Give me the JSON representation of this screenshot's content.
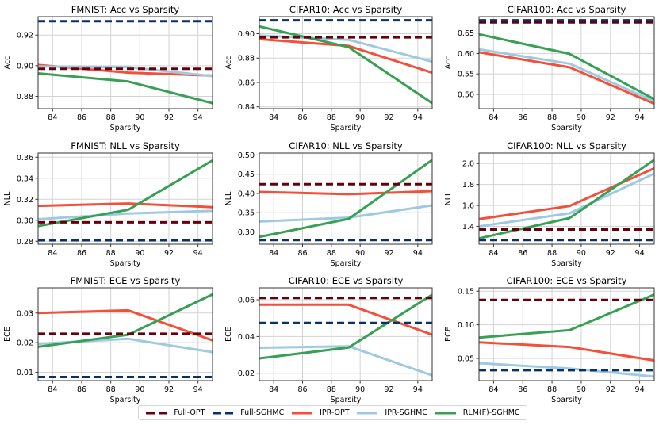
{
  "figure": {
    "legend": {
      "placement": "bottom-center",
      "entries": [
        {
          "label": "Full-OPT",
          "color": "#67000d",
          "style": "dashed"
        },
        {
          "label": "Full-SGHMC",
          "color": "#08306b",
          "style": "dashed"
        },
        {
          "label": "IPR-OPT",
          "color": "#f44f39",
          "style": "solid"
        },
        {
          "label": "IPR-SGHMC",
          "color": "#9ecae1",
          "style": "solid"
        },
        {
          "label": "RLM(F)-SGHMC",
          "color": "#37a055",
          "style": "solid"
        }
      ]
    }
  },
  "chart_data": [
    {
      "type": "line",
      "title": "FMNIST: Acc vs Sparsity",
      "xlabel": "Sparsity",
      "ylabel": "Acc",
      "xlim": [
        83,
        95
      ],
      "ylim": [
        0.872,
        0.932
      ],
      "grid": true,
      "xticks": [
        84,
        86,
        88,
        90,
        92,
        94
      ],
      "yticks": [
        0.88,
        0.9,
        0.92
      ],
      "ytick_labels": [
        "0.88",
        "0.90",
        "0.92"
      ],
      "x": [
        83,
        89.2,
        95
      ],
      "series": [
        {
          "name": "Full-OPT",
          "values": [
            0.898,
            0.898,
            0.898
          ]
        },
        {
          "name": "Full-SGHMC",
          "values": [
            0.929,
            0.929,
            0.929
          ]
        },
        {
          "name": "IPR-OPT",
          "values": [
            0.9005,
            0.8955,
            0.8935
          ]
        },
        {
          "name": "IPR-SGHMC",
          "values": [
            0.8995,
            0.899,
            0.8932
          ]
        },
        {
          "name": "RLM(F)-SGHMC",
          "values": [
            0.895,
            0.8897,
            0.8755
          ]
        }
      ]
    },
    {
      "type": "line",
      "title": "CIFAR10: Acc vs Sparsity",
      "xlabel": "Sparsity",
      "ylabel": "Acc",
      "xlim": [
        83,
        95
      ],
      "ylim": [
        0.8385,
        0.914
      ],
      "grid": true,
      "xticks": [
        84,
        86,
        88,
        90,
        92,
        94
      ],
      "yticks": [
        0.84,
        0.86,
        0.88,
        0.9
      ],
      "ytick_labels": [
        "0.84",
        "0.86",
        "0.88",
        "0.90"
      ],
      "x": [
        83,
        89.2,
        95
      ],
      "series": [
        {
          "name": "Full-OPT",
          "values": [
            0.897,
            0.897,
            0.897
          ]
        },
        {
          "name": "Full-SGHMC",
          "values": [
            0.911,
            0.911,
            0.911
          ]
        },
        {
          "name": "IPR-OPT",
          "values": [
            0.8955,
            0.89,
            0.868
          ]
        },
        {
          "name": "IPR-SGHMC",
          "values": [
            0.8985,
            0.895,
            0.877
          ]
        },
        {
          "name": "RLM(F)-SGHMC",
          "values": [
            0.906,
            0.889,
            0.843
          ]
        }
      ]
    },
    {
      "type": "line",
      "title": "CIFAR100: Acc vs Sparsity",
      "xlabel": "Sparsity",
      "ylabel": "Acc",
      "xlim": [
        83,
        95
      ],
      "ylim": [
        0.465,
        0.69
      ],
      "grid": true,
      "xticks": [
        84,
        86,
        88,
        90,
        92,
        94
      ],
      "yticks": [
        0.5,
        0.55,
        0.6,
        0.65
      ],
      "ytick_labels": [
        "0.50",
        "0.55",
        "0.60",
        "0.65"
      ],
      "x": [
        83,
        89.2,
        95
      ],
      "series": [
        {
          "name": "Full-OPT",
          "values": [
            0.676,
            0.676,
            0.676
          ]
        },
        {
          "name": "Full-SGHMC",
          "values": [
            0.681,
            0.681,
            0.681
          ]
        },
        {
          "name": "IPR-OPT",
          "values": [
            0.603,
            0.566,
            0.477
          ]
        },
        {
          "name": "IPR-SGHMC",
          "values": [
            0.61,
            0.575,
            0.483
          ]
        },
        {
          "name": "RLM(F)-SGHMC",
          "values": [
            0.647,
            0.599,
            0.488
          ]
        }
      ]
    },
    {
      "type": "line",
      "title": "FMNIST: NLL vs Sparsity",
      "xlabel": "Sparsity",
      "ylabel": "NLL",
      "xlim": [
        83,
        95
      ],
      "ylim": [
        0.2772,
        0.364
      ],
      "grid": true,
      "xticks": [
        84,
        86,
        88,
        90,
        92,
        94
      ],
      "yticks": [
        0.28,
        0.3,
        0.32,
        0.34,
        0.36
      ],
      "ytick_labels": [
        "0.28",
        "0.30",
        "0.32",
        "0.34",
        "0.36"
      ],
      "x": [
        83,
        89.2,
        95
      ],
      "series": [
        {
          "name": "Full-OPT",
          "values": [
            0.298,
            0.298,
            0.298
          ]
        },
        {
          "name": "Full-SGHMC",
          "values": [
            0.281,
            0.281,
            0.281
          ]
        },
        {
          "name": "IPR-OPT",
          "values": [
            0.3137,
            0.316,
            0.3125
          ]
        },
        {
          "name": "IPR-SGHMC",
          "values": [
            0.301,
            0.3065,
            0.309
          ]
        },
        {
          "name": "RLM(F)-SGHMC",
          "values": [
            0.2945,
            0.31,
            0.357
          ]
        }
      ]
    },
    {
      "type": "line",
      "title": "CIFAR10: NLL vs Sparsity",
      "xlabel": "Sparsity",
      "ylabel": "NLL",
      "xlim": [
        83,
        95
      ],
      "ylim": [
        0.268,
        0.505
      ],
      "grid": true,
      "xticks": [
        84,
        86,
        88,
        90,
        92,
        94
      ],
      "yticks": [
        0.3,
        0.35,
        0.4,
        0.45,
        0.5
      ],
      "ytick_labels": [
        "0.30",
        "0.35",
        "0.40",
        "0.45",
        "0.50"
      ],
      "x": [
        83,
        89.2,
        95
      ],
      "series": [
        {
          "name": "Full-OPT",
          "values": [
            0.424,
            0.424,
            0.424
          ]
        },
        {
          "name": "Full-SGHMC",
          "values": [
            0.279,
            0.279,
            0.279
          ]
        },
        {
          "name": "IPR-OPT",
          "values": [
            0.404,
            0.398,
            0.406
          ]
        },
        {
          "name": "IPR-SGHMC",
          "values": [
            0.327,
            0.337,
            0.369
          ]
        },
        {
          "name": "RLM(F)-SGHMC",
          "values": [
            0.287,
            0.334,
            0.487
          ]
        }
      ]
    },
    {
      "type": "line",
      "title": "CIFAR100: NLL vs Sparsity",
      "xlabel": "Sparsity",
      "ylabel": "NLL",
      "xlim": [
        83,
        95
      ],
      "ylim": [
        1.23,
        2.1
      ],
      "grid": true,
      "xticks": [
        84,
        86,
        88,
        90,
        92,
        94
      ],
      "yticks": [
        1.4,
        1.6,
        1.8,
        2.0
      ],
      "ytick_labels": [
        "1.4",
        "1.6",
        "1.8",
        "2.0"
      ],
      "x": [
        83,
        89.2,
        95
      ],
      "series": [
        {
          "name": "Full-OPT",
          "values": [
            1.37,
            1.37,
            1.37
          ]
        },
        {
          "name": "Full-SGHMC",
          "values": [
            1.27,
            1.27,
            1.27
          ]
        },
        {
          "name": "IPR-OPT",
          "values": [
            1.47,
            1.595,
            1.955
          ]
        },
        {
          "name": "IPR-SGHMC",
          "values": [
            1.4,
            1.525,
            1.905
          ]
        },
        {
          "name": "RLM(F)-SGHMC",
          "values": [
            1.285,
            1.48,
            2.035
          ]
        }
      ]
    },
    {
      "type": "line",
      "title": "FMNIST: ECE vs Sparsity",
      "xlabel": "Sparsity",
      "ylabel": "ECE",
      "xlim": [
        83,
        95
      ],
      "ylim": [
        0.0072,
        0.0385
      ],
      "grid": true,
      "xticks": [
        84,
        86,
        88,
        90,
        92,
        94
      ],
      "yticks": [
        0.01,
        0.02,
        0.03
      ],
      "ytick_labels": [
        "0.01",
        "0.02",
        "0.03"
      ],
      "x": [
        83,
        89.2,
        95
      ],
      "series": [
        {
          "name": "Full-OPT",
          "values": [
            0.023,
            0.023,
            0.023
          ]
        },
        {
          "name": "Full-SGHMC",
          "values": [
            0.0084,
            0.0084,
            0.0084
          ]
        },
        {
          "name": "IPR-OPT",
          "values": [
            0.03,
            0.0309,
            0.0208
          ]
        },
        {
          "name": "IPR-SGHMC",
          "values": [
            0.0196,
            0.0213,
            0.0168
          ]
        },
        {
          "name": "RLM(F)-SGHMC",
          "values": [
            0.0186,
            0.0227,
            0.0363
          ]
        }
      ]
    },
    {
      "type": "line",
      "title": "CIFAR10: ECE vs Sparsity",
      "xlabel": "Sparsity",
      "ylabel": "ECE",
      "xlim": [
        83,
        95
      ],
      "ylim": [
        0.016,
        0.0665
      ],
      "grid": true,
      "xticks": [
        84,
        86,
        88,
        90,
        92,
        94
      ],
      "yticks": [
        0.02,
        0.04,
        0.06
      ],
      "ytick_labels": [
        "0.02",
        "0.04",
        "0.06"
      ],
      "x": [
        83,
        89.2,
        95
      ],
      "series": [
        {
          "name": "Full-OPT",
          "values": [
            0.061,
            0.061,
            0.061
          ]
        },
        {
          "name": "Full-SGHMC",
          "values": [
            0.0474,
            0.0474,
            0.0474
          ]
        },
        {
          "name": "IPR-OPT",
          "values": [
            0.0573,
            0.0573,
            0.041
          ]
        },
        {
          "name": "IPR-SGHMC",
          "values": [
            0.0339,
            0.0347,
            0.0188
          ]
        },
        {
          "name": "RLM(F)-SGHMC",
          "values": [
            0.0281,
            0.034,
            0.0628
          ]
        }
      ]
    },
    {
      "type": "line",
      "title": "CIFAR100: ECE vs Sparsity",
      "xlabel": "Sparsity",
      "ylabel": "ECE",
      "xlim": [
        83,
        95
      ],
      "ylim": [
        0.017,
        0.155
      ],
      "grid": true,
      "xticks": [
        84,
        86,
        88,
        90,
        92,
        94
      ],
      "yticks": [
        0.05,
        0.1,
        0.15
      ],
      "ytick_labels": [
        "0.05",
        "0.10",
        "0.15"
      ],
      "x": [
        83,
        89.2,
        95
      ],
      "series": [
        {
          "name": "Full-OPT",
          "values": [
            0.137,
            0.137,
            0.137
          ]
        },
        {
          "name": "Full-SGHMC",
          "values": [
            0.0325,
            0.0325,
            0.0325
          ]
        },
        {
          "name": "IPR-OPT",
          "values": [
            0.074,
            0.067,
            0.047
          ]
        },
        {
          "name": "IPR-SGHMC",
          "values": [
            0.043,
            0.035,
            0.023
          ]
        },
        {
          "name": "RLM(F)-SGHMC",
          "values": [
            0.081,
            0.092,
            0.145
          ]
        }
      ]
    }
  ]
}
